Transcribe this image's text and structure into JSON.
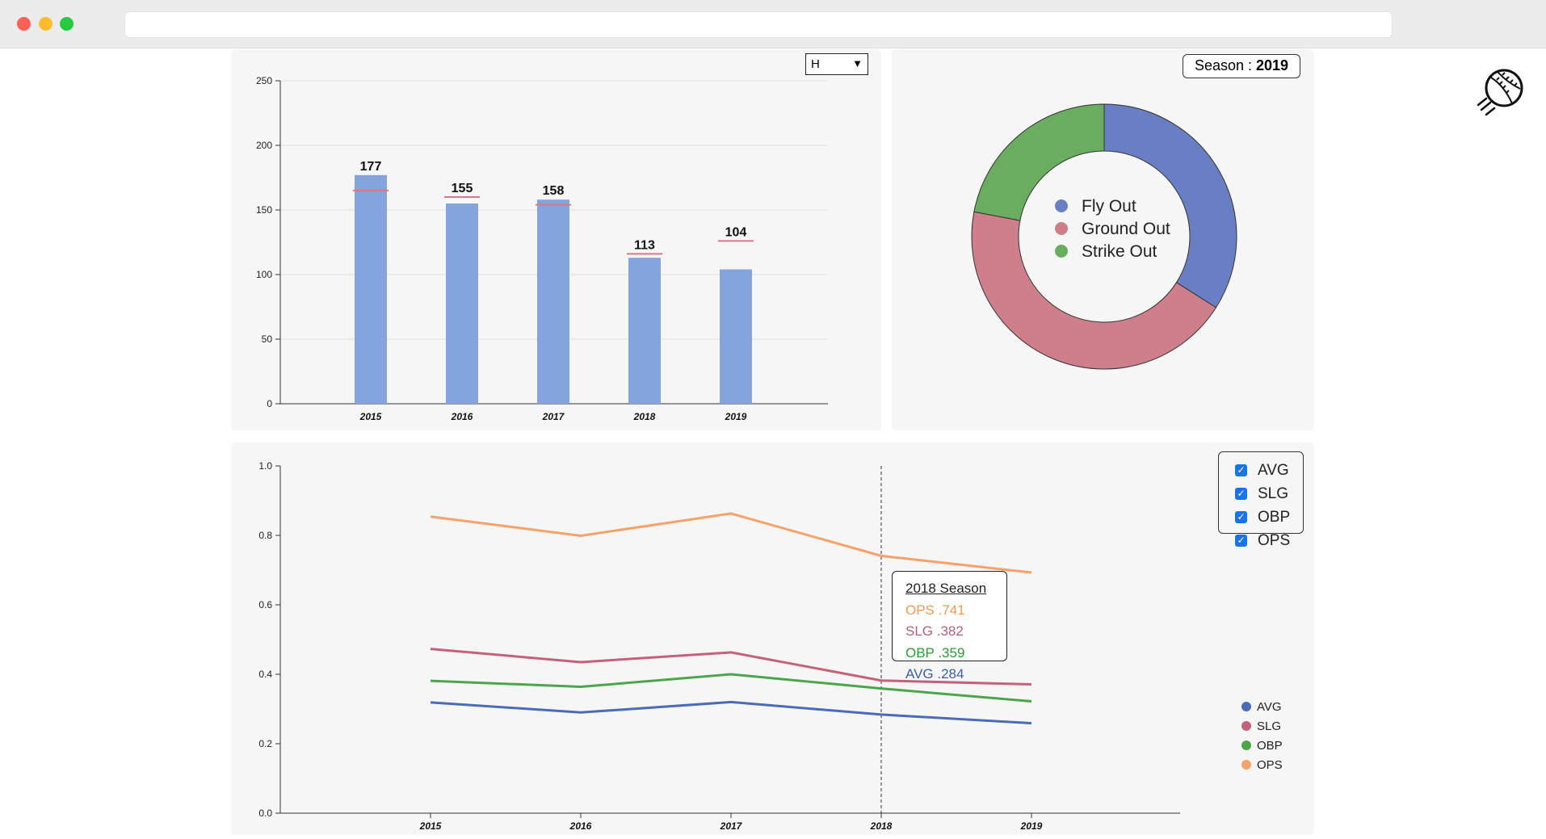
{
  "stat_select": {
    "value": "H",
    "chevron": "chevron-down-icon"
  },
  "season_label": {
    "prefix": "Season : ",
    "year": "2019"
  },
  "bar_chart": {
    "type": "bar",
    "categories": [
      "2015",
      "2016",
      "2017",
      "2018",
      "2019"
    ],
    "values": [
      177,
      155,
      158,
      113,
      104
    ],
    "reference_values": [
      165,
      160,
      154,
      116,
      126
    ],
    "yticks": [
      0,
      50,
      100,
      150,
      200,
      250
    ],
    "ylim": [
      0,
      250
    ],
    "bar_color": "#85a3dc",
    "reference_color": "#d9788a"
  },
  "donut_chart": {
    "type": "pie",
    "labels": [
      "Fly Out",
      "Ground Out",
      "Strike Out"
    ],
    "values": [
      34,
      44,
      22
    ],
    "colors": [
      "#6a7ec4",
      "#cf7f8b",
      "#6aad61"
    ]
  },
  "chart_data": {
    "type": "line",
    "x": [
      "2015",
      "2016",
      "2017",
      "2018",
      "2019"
    ],
    "yticks": [
      "0.0",
      "0.2",
      "0.4",
      "0.6",
      "0.8",
      "1.0"
    ],
    "ylim": [
      0,
      1
    ],
    "grid": false,
    "legend_position": "right",
    "series": [
      {
        "name": "AVG",
        "values": [
          0.319,
          0.29,
          0.32,
          0.284,
          0.259
        ],
        "color": "#4a6bb8"
      },
      {
        "name": "SLG",
        "values": [
          0.473,
          0.435,
          0.463,
          0.382,
          0.371
        ],
        "color": "#c46279"
      },
      {
        "name": "OBP",
        "values": [
          0.381,
          0.364,
          0.4,
          0.359,
          0.322
        ],
        "color": "#4ca54a"
      },
      {
        "name": "OPS",
        "values": [
          0.854,
          0.799,
          0.863,
          0.741,
          0.693
        ],
        "color": "#f6a26a"
      }
    ],
    "hover_x": "2018"
  },
  "filter": {
    "options": [
      {
        "label": "AVG",
        "checked": true
      },
      {
        "label": "SLG",
        "checked": true
      },
      {
        "label": "OBP",
        "checked": true
      },
      {
        "label": "OPS",
        "checked": true
      }
    ]
  },
  "tooltip": {
    "title": "2018 Season",
    "lines": [
      {
        "text": "OPS .741",
        "color": "#f49856"
      },
      {
        "text": "SLG .382",
        "color": "#b45f76"
      },
      {
        "text": "OBP .359",
        "color": "#2e9a34"
      },
      {
        "text": "AVG .284",
        "color": "#3b5fa8"
      }
    ]
  },
  "logo_icon": "baseball-icon"
}
